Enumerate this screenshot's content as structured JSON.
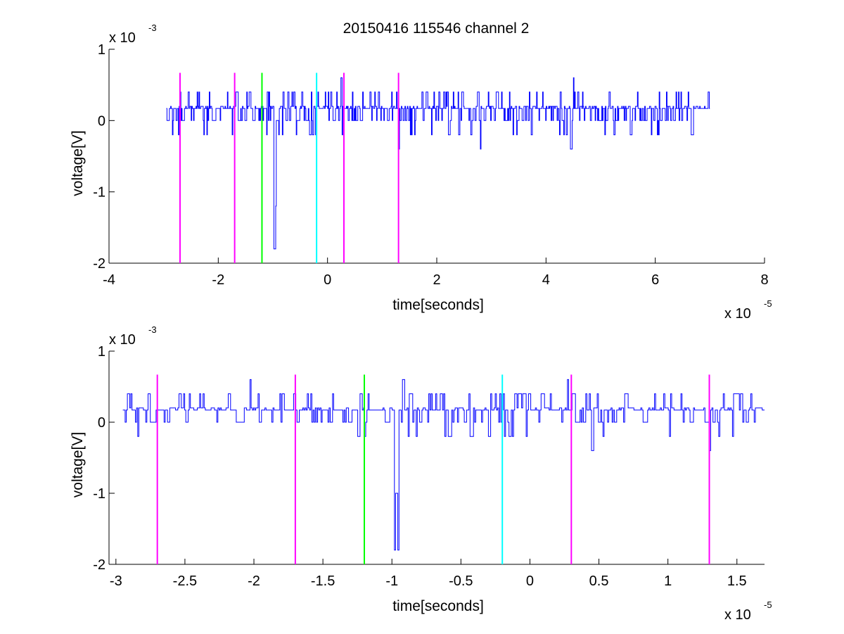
{
  "figure": {
    "title": "20150416 115546 channel 2"
  },
  "chart_data": [
    {
      "type": "line",
      "title": "20150416 115546 channel 2",
      "xlabel": "time[seconds]",
      "ylabel": "voltage[V]",
      "xlim": [
        -4,
        8
      ],
      "ylim": [
        -2,
        1
      ],
      "x_ticks": [
        -4,
        -2,
        0,
        2,
        4,
        6,
        8
      ],
      "x_tick_labels": [
        "-4",
        "-2",
        "0",
        "2",
        "4",
        "6",
        "8"
      ],
      "y_ticks": [
        -2,
        -1,
        0,
        1
      ],
      "y_tick_labels": [
        "-2",
        "-1",
        "0",
        "1"
      ],
      "x_multiplier": {
        "base": "x 10",
        "exp": "-5"
      },
      "y_multiplier": {
        "base": "x 10",
        "exp": "-3"
      },
      "grid": false,
      "series": [
        {
          "color": "#0000ff",
          "x_range": [
            -2.95,
            7.0
          ],
          "baseline": 0.17,
          "noise_levels": [
            -0.2,
            0,
            0.2,
            0.4
          ],
          "events": [
            {
              "x": -0.98,
              "y": -1.8
            },
            {
              "x": -0.95,
              "y": -1.2
            },
            {
              "x": 0.25,
              "y": 0.6
            },
            {
              "x": 1.3,
              "y": -0.4
            },
            {
              "x": 2.8,
              "y": -0.4
            },
            {
              "x": 4.45,
              "y": -0.4
            },
            {
              "x": 4.5,
              "y": 0.6
            }
          ]
        }
      ],
      "markers": [
        {
          "x": -2.7,
          "color": "#ff00ff"
        },
        {
          "x": -1.7,
          "color": "#ff00ff"
        },
        {
          "x": -1.2,
          "color": "#00ff00"
        },
        {
          "x": -0.2,
          "color": "#00ffff"
        },
        {
          "x": 0.3,
          "color": "#ff00ff"
        },
        {
          "x": 1.3,
          "color": "#ff00ff"
        }
      ],
      "marker_y_range": [
        -2,
        0.67
      ]
    },
    {
      "type": "line",
      "title": "",
      "xlabel": "time[seconds]",
      "ylabel": "voltage[V]",
      "xlim": [
        -3.05,
        1.7
      ],
      "ylim": [
        -2,
        1
      ],
      "x_ticks": [
        -3,
        -2.5,
        -2,
        -1.5,
        -1,
        -0.5,
        0,
        0.5,
        1,
        1.5
      ],
      "x_tick_labels": [
        "-3",
        "-2.5",
        "-2",
        "-1.5",
        "-1",
        "-0.5",
        "0",
        "0.5",
        "1",
        "1.5"
      ],
      "y_ticks": [
        -2,
        -1,
        0,
        1
      ],
      "y_tick_labels": [
        "-2",
        "-1",
        "0",
        "1"
      ],
      "x_multiplier": {
        "base": "x 10",
        "exp": "-5"
      },
      "y_multiplier": {
        "base": "x 10",
        "exp": "-3"
      },
      "grid": false,
      "series": [
        {
          "color": "#0000ff",
          "x_range": [
            -2.95,
            1.7
          ],
          "baseline": 0.17,
          "noise_levels": [
            -0.2,
            0,
            0.2,
            0.4
          ],
          "events": [
            {
              "x": -0.98,
              "y": -1.8
            },
            {
              "x": -0.97,
              "y": -1.0
            },
            {
              "x": -0.96,
              "y": -1.8
            },
            {
              "x": -0.92,
              "y": 0.6
            },
            {
              "x": -2.03,
              "y": 0.6
            },
            {
              "x": 0.27,
              "y": 0.6
            },
            {
              "x": 0.45,
              "y": -0.4
            },
            {
              "x": 1.3,
              "y": -0.4
            },
            {
              "x": -2.84,
              "y": -0.2
            }
          ]
        }
      ],
      "markers": [
        {
          "x": -2.7,
          "color": "#ff00ff"
        },
        {
          "x": -1.7,
          "color": "#ff00ff"
        },
        {
          "x": -1.2,
          "color": "#00ff00"
        },
        {
          "x": -0.2,
          "color": "#00ffff"
        },
        {
          "x": 0.3,
          "color": "#ff00ff"
        },
        {
          "x": 1.3,
          "color": "#ff00ff"
        }
      ],
      "marker_y_range": [
        -2,
        0.67
      ]
    }
  ]
}
